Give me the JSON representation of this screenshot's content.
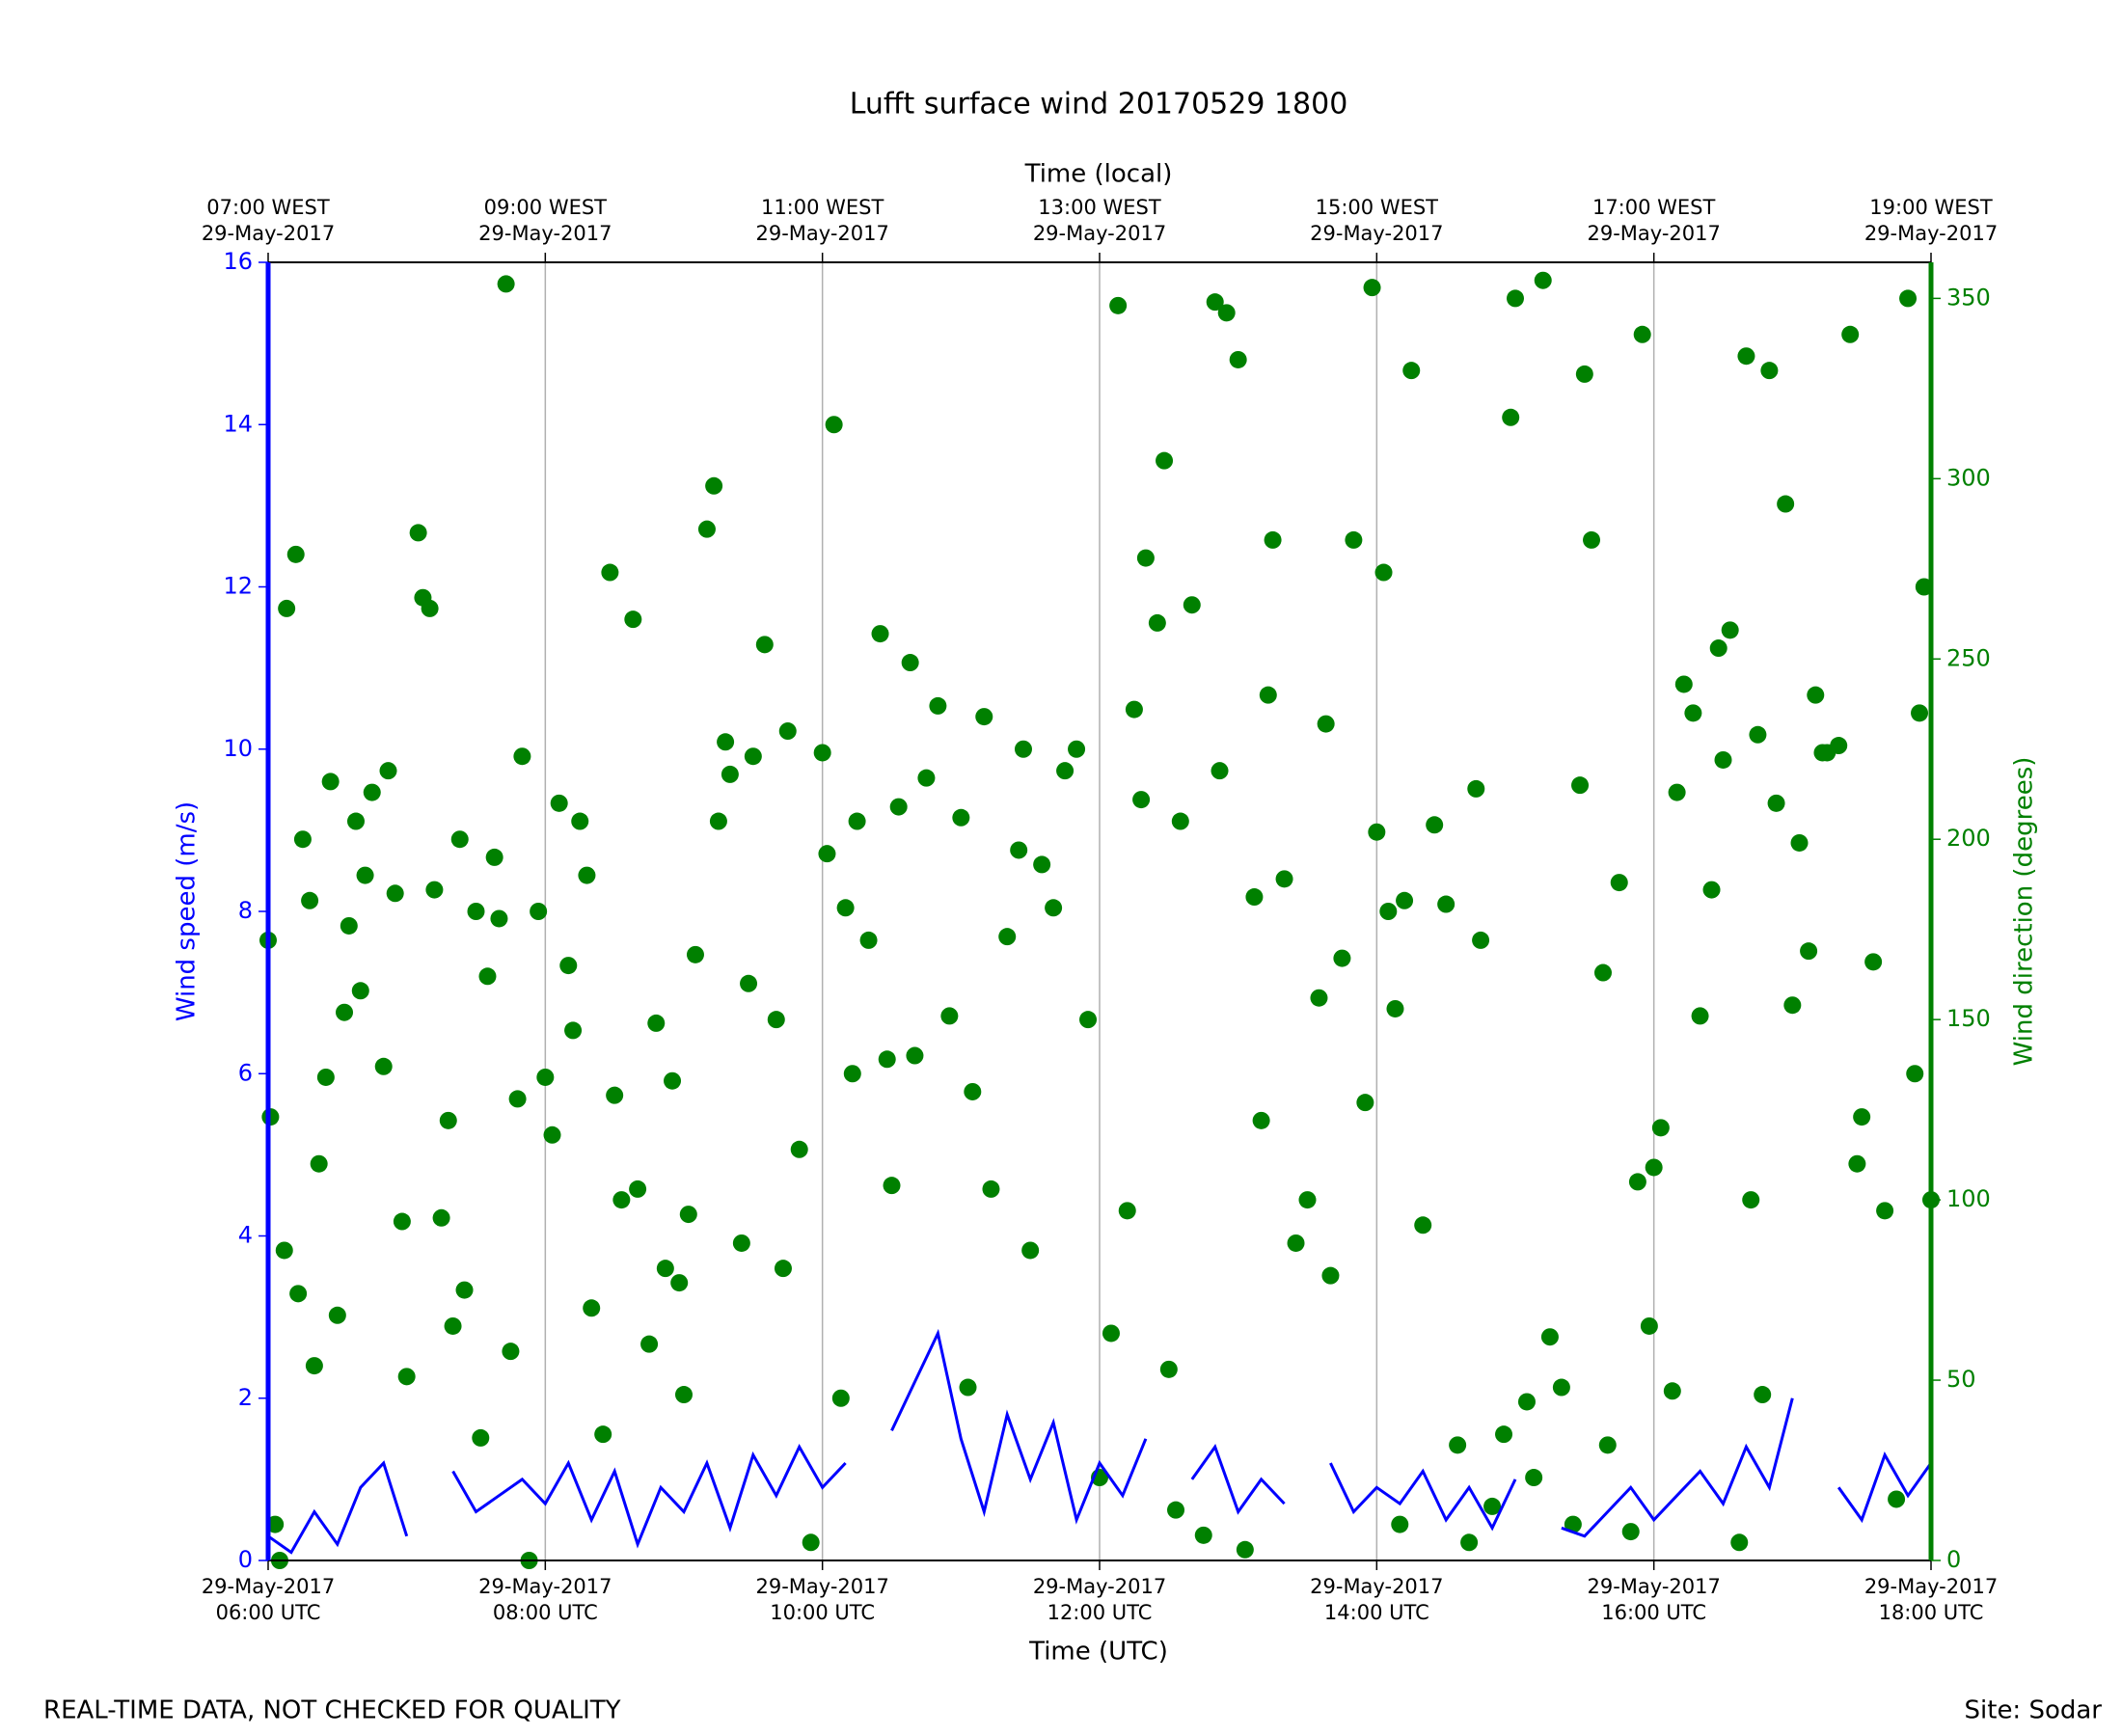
{
  "chart_data": {
    "type": "line",
    "title": "Lufft surface wind 20170529 1800",
    "xlabel": "Time (UTC)",
    "x2label": "Time (local)",
    "ylabel": "Wind speed (m/s)",
    "y2label": "Wind direction (degrees)",
    "footer_left": "REAL-TIME DATA, NOT CHECKED FOR QUALITY",
    "footer_right": "Site: Sodar",
    "xlim": [
      "06:00",
      "18:00"
    ],
    "xticks": [
      {
        "value": "06:00",
        "label": "29-May-2017\n06:00 UTC"
      },
      {
        "value": "08:00",
        "label": "29-May-2017\n08:00 UTC"
      },
      {
        "value": "10:00",
        "label": "29-May-2017\n10:00 UTC"
      },
      {
        "value": "12:00",
        "label": "29-May-2017\n12:00 UTC"
      },
      {
        "value": "14:00",
        "label": "29-May-2017\n14:00 UTC"
      },
      {
        "value": "16:00",
        "label": "29-May-2017\n16:00 UTC"
      },
      {
        "value": "18:00",
        "label": "29-May-2017\n18:00 UTC"
      }
    ],
    "x2ticks": [
      {
        "value": "06:00",
        "label": "07:00 WEST\n29-May-2017"
      },
      {
        "value": "08:00",
        "label": "09:00 WEST\n29-May-2017"
      },
      {
        "value": "10:00",
        "label": "11:00 WEST\n29-May-2017"
      },
      {
        "value": "12:00",
        "label": "13:00 WEST\n29-May-2017"
      },
      {
        "value": "14:00",
        "label": "15:00 WEST\n29-May-2017"
      },
      {
        "value": "16:00",
        "label": "17:00 WEST\n29-May-2017"
      },
      {
        "value": "18:00",
        "label": "19:00 WEST\n29-May-2017"
      }
    ],
    "ylim": [
      0,
      16
    ],
    "yticks": [
      0,
      2,
      4,
      6,
      8,
      10,
      12,
      14,
      16
    ],
    "ycolor": "#0000ff",
    "y2lim": [
      0,
      360
    ],
    "y2ticks": [
      0,
      50,
      100,
      150,
      200,
      250,
      300,
      350
    ],
    "y2color": "#008000",
    "grid": "x",
    "series": [
      {
        "type": "line",
        "color": "#0000ff",
        "axis": "y",
        "x": [
          "06:00",
          "06:10",
          "06:20",
          "06:30",
          "06:40",
          "06:50",
          "07:00",
          "07:10",
          "07:20",
          "07:30",
          "07:40",
          "07:50",
          "08:00",
          "08:10",
          "08:20",
          "08:30",
          "08:40",
          "08:50",
          "09:00",
          "09:10",
          "09:20",
          "09:30",
          "09:40",
          "09:50",
          "10:00",
          "10:10",
          "10:20",
          "10:30",
          "10:40",
          "10:50",
          "11:00",
          "11:10",
          "11:20",
          "11:30",
          "11:40",
          "11:50",
          "12:00",
          "12:10",
          "12:20",
          "12:30",
          "12:40",
          "12:50",
          "13:00",
          "13:10",
          "13:20",
          "13:30",
          "13:40",
          "13:50",
          "14:00",
          "14:10",
          "14:20",
          "14:30",
          "14:40",
          "14:50",
          "15:00",
          "15:10",
          "15:20",
          "15:30",
          "15:40",
          "15:50",
          "16:00",
          "16:10",
          "16:20",
          "16:30",
          "16:40",
          "16:50",
          "17:00",
          "17:10",
          "17:20",
          "17:30",
          "17:40",
          "17:50",
          "18:00"
        ],
        "values": [
          0.3,
          0.1,
          0.6,
          0.2,
          0.9,
          1.2,
          0.3,
          null,
          1.1,
          0.6,
          0.8,
          1.0,
          0.7,
          1.2,
          0.5,
          1.1,
          0.2,
          0.9,
          0.6,
          1.2,
          0.4,
          1.3,
          0.8,
          1.4,
          0.9,
          1.2,
          null,
          1.6,
          2.2,
          2.8,
          1.5,
          0.6,
          1.8,
          1.0,
          1.7,
          0.5,
          1.2,
          0.8,
          1.5,
          null,
          1.0,
          1.4,
          0.6,
          1.0,
          0.7,
          null,
          1.2,
          0.6,
          0.9,
          0.7,
          1.1,
          0.5,
          0.9,
          0.4,
          1.0,
          null,
          0.4,
          0.3,
          0.6,
          0.9,
          0.5,
          0.8,
          1.1,
          0.7,
          1.4,
          0.9,
          2.0,
          null,
          0.9,
          0.5,
          1.3,
          0.8,
          1.2
        ]
      },
      {
        "type": "scatter",
        "color": "#008000",
        "axis": "y2",
        "x": [
          "06:00",
          "06:01",
          "06:03",
          "06:05",
          "06:07",
          "06:08",
          "06:12",
          "06:13",
          "06:15",
          "06:18",
          "06:20",
          "06:22",
          "06:25",
          "06:27",
          "06:30",
          "06:33",
          "06:35",
          "06:38",
          "06:40",
          "06:42",
          "06:45",
          "06:50",
          "06:52",
          "06:55",
          "06:58",
          "07:00",
          "07:05",
          "07:07",
          "07:10",
          "07:12",
          "07:15",
          "07:18",
          "07:20",
          "07:23",
          "07:25",
          "07:30",
          "07:32",
          "07:35",
          "07:38",
          "07:40",
          "07:43",
          "07:45",
          "07:48",
          "07:50",
          "07:53",
          "07:57",
          "08:00",
          "08:03",
          "08:06",
          "08:10",
          "08:12",
          "08:15",
          "08:18",
          "08:20",
          "08:25",
          "08:28",
          "08:30",
          "08:33",
          "08:38",
          "08:40",
          "08:45",
          "08:48",
          "08:52",
          "08:55",
          "08:58",
          "09:00",
          "09:02",
          "09:05",
          "09:10",
          "09:13",
          "09:15",
          "09:18",
          "09:20",
          "09:25",
          "09:28",
          "09:30",
          "09:35",
          "09:40",
          "09:43",
          "09:45",
          "09:50",
          "09:55",
          "10:00",
          "10:02",
          "10:05",
          "10:08",
          "10:10",
          "10:13",
          "10:15",
          "10:20",
          "10:25",
          "10:28",
          "10:30",
          "10:33",
          "10:38",
          "10:40",
          "10:45",
          "10:50",
          "10:55",
          "11:00",
          "11:03",
          "11:05",
          "11:10",
          "11:13",
          "11:20",
          "11:25",
          "11:27",
          "11:30",
          "11:35",
          "11:40",
          "11:45",
          "11:50",
          "11:55",
          "12:00",
          "12:05",
          "12:08",
          "12:12",
          "12:15",
          "12:18",
          "12:20",
          "12:25",
          "12:28",
          "12:30",
          "12:33",
          "12:35",
          "12:40",
          "12:45",
          "12:50",
          "12:52",
          "12:55",
          "13:00",
          "13:03",
          "13:07",
          "13:10",
          "13:13",
          "13:15",
          "13:20",
          "13:25",
          "13:30",
          "13:35",
          "13:38",
          "13:40",
          "13:45",
          "13:50",
          "13:55",
          "13:58",
          "14:00",
          "14:03",
          "14:05",
          "14:08",
          "14:10",
          "14:12",
          "14:15",
          "14:20",
          "14:25",
          "14:30",
          "14:35",
          "14:40",
          "14:43",
          "14:45",
          "14:50",
          "14:55",
          "14:58",
          "15:00",
          "15:05",
          "15:08",
          "15:12",
          "15:15",
          "15:20",
          "15:25",
          "15:28",
          "15:30",
          "15:33",
          "15:38",
          "15:40",
          "15:45",
          "15:50",
          "15:53",
          "15:55",
          "15:58",
          "16:00",
          "16:03",
          "16:08",
          "16:10",
          "16:13",
          "16:17",
          "16:20",
          "16:25",
          "16:28",
          "16:30",
          "16:33",
          "16:37",
          "16:40",
          "16:42",
          "16:45",
          "16:47",
          "16:50",
          "16:53",
          "16:57",
          "17:00",
          "17:03",
          "17:07",
          "17:10",
          "17:13",
          "17:15",
          "17:20",
          "17:25",
          "17:28",
          "17:30",
          "17:35",
          "17:40",
          "17:45",
          "17:50",
          "17:53",
          "17:55",
          "17:57",
          "18:00"
        ],
        "values": [
          172,
          123,
          10,
          0,
          86,
          264,
          279,
          74,
          200,
          183,
          54,
          110,
          134,
          216,
          68,
          152,
          176,
          205,
          158,
          190,
          213,
          137,
          219,
          185,
          94,
          51,
          285,
          267,
          264,
          186,
          95,
          122,
          65,
          200,
          75,
          180,
          34,
          162,
          195,
          178,
          354,
          58,
          128,
          223,
          0,
          180,
          134,
          118,
          210,
          165,
          147,
          205,
          190,
          70,
          35,
          274,
          129,
          100,
          261,
          103,
          60,
          149,
          81,
          133,
          77,
          46,
          96,
          168,
          286,
          298,
          205,
          227,
          218,
          88,
          160,
          223,
          254,
          150,
          81,
          230,
          114,
          5,
          224,
          196,
          315,
          45,
          181,
          135,
          205,
          172,
          257,
          139,
          104,
          209,
          249,
          140,
          217,
          237,
          151,
          206,
          48,
          130,
          234,
          103,
          173,
          197,
          225,
          86,
          193,
          181,
          219,
          225,
          150,
          23,
          63,
          348,
          97,
          236,
          211,
          278,
          260,
          305,
          53,
          14,
          205,
          265,
          7,
          349,
          219,
          346,
          333,
          3,
          184,
          122,
          240,
          283,
          189,
          88,
          100,
          156,
          232,
          79,
          167,
          283,
          127,
          353,
          202,
          274,
          180,
          153,
          10,
          183,
          330,
          93,
          204,
          182,
          32,
          5,
          214,
          172,
          15,
          35,
          317,
          350,
          44,
          23,
          355,
          62,
          48,
          10,
          215,
          329,
          283,
          163,
          32,
          188,
          8,
          105,
          340,
          65,
          109,
          120,
          47,
          213,
          243,
          235,
          151,
          186,
          253,
          222,
          258,
          5,
          334,
          100,
          229,
          46,
          330,
          210,
          293,
          154,
          199,
          169,
          240,
          224,
          224,
          226,
          340,
          110,
          123,
          166,
          97,
          17,
          350,
          135,
          235,
          270,
          100
        ]
      }
    ]
  }
}
